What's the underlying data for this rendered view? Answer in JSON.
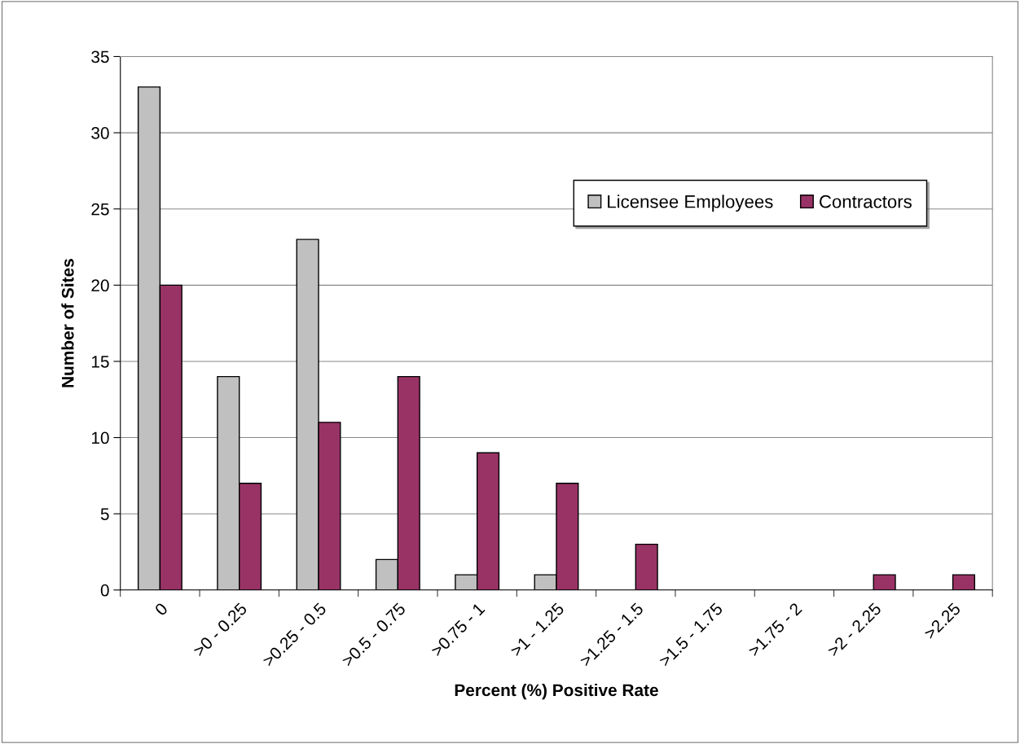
{
  "chart_data": {
    "type": "bar",
    "xlabel": "Percent (%) Positive Rate",
    "ylabel": "Number of Sites",
    "categories": [
      "0",
      ">0 - 0.25",
      ">0.25 - 0.5",
      ">0.5 - 0.75",
      ">0.75 - 1",
      ">1 - 1.25",
      ">1.25 - 1.5",
      ">1.5 - 1.75",
      ">1.75 - 2",
      ">2 - 2.25",
      ">2.25"
    ],
    "series": [
      {
        "name": "Licensee Employees",
        "color": "#c0c0c0",
        "values": [
          33,
          14,
          23,
          2,
          1,
          1,
          0,
          0,
          0,
          0,
          0
        ]
      },
      {
        "name": "Contractors",
        "color": "#993366",
        "values": [
          20,
          7,
          11,
          14,
          9,
          7,
          3,
          0,
          0,
          1,
          1
        ]
      }
    ],
    "ylim": [
      0,
      35
    ],
    "yticks": [
      0,
      5,
      10,
      15,
      20,
      25,
      30,
      35
    ],
    "grid": "y",
    "legend": "top right"
  }
}
